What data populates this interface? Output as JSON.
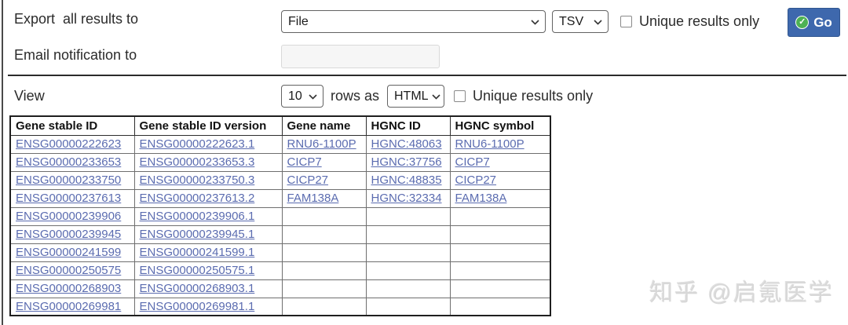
{
  "export_section": {
    "label": "Export  all results to",
    "destination_select": {
      "value": "File"
    },
    "format_select": {
      "value": "TSV"
    },
    "unique_label": "Unique results only",
    "go_button_label": "Go",
    "email_label": "Email notification to",
    "email_input": {
      "value": "",
      "placeholder": ""
    }
  },
  "view_section": {
    "label": "View",
    "rows_select": {
      "value": "10"
    },
    "rows_as_label": "rows as",
    "format_select": {
      "value": "HTML"
    },
    "unique_label": "Unique results only"
  },
  "results_table": {
    "headers": [
      "Gene stable ID",
      "Gene stable ID version",
      "Gene name",
      "HGNC ID",
      "HGNC symbol"
    ],
    "rows": [
      [
        "ENSG00000222623",
        "ENSG00000222623.1",
        "RNU6-1100P",
        "HGNC:48063",
        "RNU6-1100P"
      ],
      [
        "ENSG00000233653",
        "ENSG00000233653.3",
        "CICP7",
        "HGNC:37756",
        "CICP7"
      ],
      [
        "ENSG00000233750",
        "ENSG00000233750.3",
        "CICP27",
        "HGNC:48835",
        "CICP27"
      ],
      [
        "ENSG00000237613",
        "ENSG00000237613.2",
        "FAM138A",
        "HGNC:32334",
        "FAM138A"
      ],
      [
        "ENSG00000239906",
        "ENSG00000239906.1",
        "",
        "",
        ""
      ],
      [
        "ENSG00000239945",
        "ENSG00000239945.1",
        "",
        "",
        ""
      ],
      [
        "ENSG00000241599",
        "ENSG00000241599.1",
        "",
        "",
        ""
      ],
      [
        "ENSG00000250575",
        "ENSG00000250575.1",
        "",
        "",
        ""
      ],
      [
        "ENSG00000268903",
        "ENSG00000268903.1",
        "",
        "",
        ""
      ],
      [
        "ENSG00000269981",
        "ENSG00000269981.1",
        "",
        "",
        ""
      ]
    ]
  },
  "icons": {
    "go_check_glyph": "✓",
    "go_check_name": "check-circle-icon",
    "select_chevron_name": "chevron-down-icon"
  },
  "watermark": "知乎 @启氪医学",
  "colors": {
    "go_button_bg": "#3e68ad",
    "go_check_green": "#4db254",
    "link": "#5b6cb0",
    "divider": "#2b2b2b",
    "email_input_bg": "#f6f6f6"
  }
}
